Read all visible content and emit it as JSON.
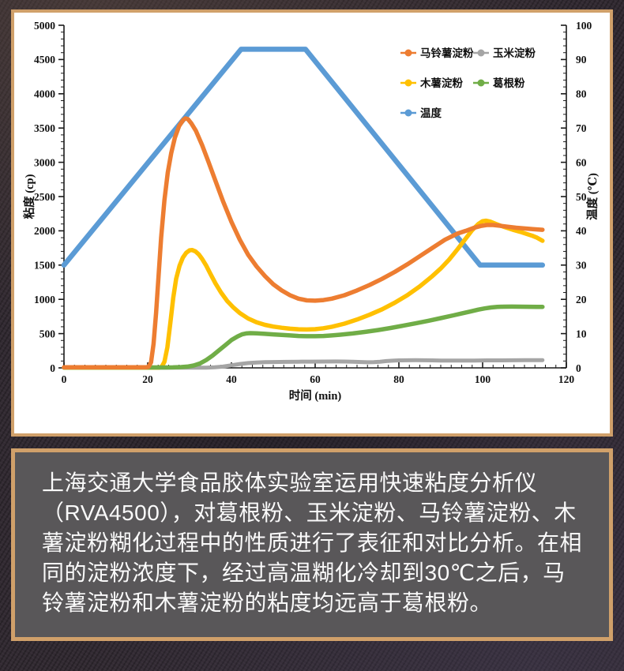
{
  "page": {
    "background_color": "#332b33",
    "frame_color": "#d0a06a",
    "chart_card_color": "#ffffff",
    "caption_panel_color": "#595759",
    "caption_text_color": "#fafafa"
  },
  "caption": {
    "text": "上海交通大学食品胶体实验室运用快速粘度分析仪（RVA4500），对葛根粉、玉米淀粉、马铃薯淀粉、木薯淀粉糊化过程中的性质进行了表征和对比分析。在相同的淀粉浓度下，经过高温糊化冷却到30℃之后，马铃薯淀粉和木薯淀粉的粘度均远高于葛根粉。"
  },
  "chart_data": {
    "type": "line",
    "title": "",
    "xlabel": "时间 (min)",
    "ylabel_left": "粘度 (cp)",
    "ylabel_right": "温度 (℃)",
    "x_range": [
      0,
      120
    ],
    "x_major_tick": 20,
    "x_minor_tick": 2.5,
    "y_left_range": [
      0,
      5000
    ],
    "y_left_major_tick": 500,
    "y_left_minor_tick": 100,
    "y_right_range": [
      0,
      100
    ],
    "y_right_major_tick": 10,
    "y_right_minor_tick": 2,
    "grid": false,
    "legend_position": "inside-top-right",
    "legend_rows": [
      [
        "马铃薯淀粉",
        "玉米淀粉"
      ],
      [
        "木薯淀粉",
        "葛根粉"
      ],
      [
        "温度"
      ]
    ],
    "series": [
      {
        "name": "马铃薯淀粉",
        "axis": "left",
        "color": "#ED7D31",
        "width": 5.5,
        "z": 5,
        "points": [
          [
            0,
            8
          ],
          [
            5,
            8
          ],
          [
            10,
            8
          ],
          [
            15,
            8
          ],
          [
            19.5,
            8
          ],
          [
            20.2,
            15
          ],
          [
            20.8,
            80
          ],
          [
            21.4,
            350
          ],
          [
            22,
            800
          ],
          [
            22.6,
            1350
          ],
          [
            23.2,
            1900
          ],
          [
            24,
            2450
          ],
          [
            24.8,
            2850
          ],
          [
            25.6,
            3130
          ],
          [
            26.5,
            3360
          ],
          [
            27.5,
            3530
          ],
          [
            28.5,
            3620
          ],
          [
            29,
            3640
          ],
          [
            29.6,
            3630
          ],
          [
            30.4,
            3570
          ],
          [
            31.5,
            3460
          ],
          [
            33,
            3250
          ],
          [
            34.5,
            3010
          ],
          [
            36,
            2760
          ],
          [
            38,
            2430
          ],
          [
            40,
            2130
          ],
          [
            42,
            1870
          ],
          [
            44,
            1650
          ],
          [
            46,
            1480
          ],
          [
            48,
            1340
          ],
          [
            50,
            1220
          ],
          [
            52,
            1130
          ],
          [
            54,
            1060
          ],
          [
            56,
            1010
          ],
          [
            58,
            985
          ],
          [
            60,
            980
          ],
          [
            62,
            990
          ],
          [
            64,
            1010
          ],
          [
            67,
            1060
          ],
          [
            70,
            1130
          ],
          [
            73,
            1210
          ],
          [
            76,
            1300
          ],
          [
            79,
            1400
          ],
          [
            82,
            1510
          ],
          [
            85,
            1630
          ],
          [
            88,
            1750
          ],
          [
            91,
            1870
          ],
          [
            94,
            1960
          ],
          [
            96,
            2000
          ],
          [
            98,
            2045
          ],
          [
            99.5,
            2070
          ],
          [
            101,
            2085
          ],
          [
            102.5,
            2085
          ],
          [
            104,
            2075
          ],
          [
            106,
            2060
          ],
          [
            108,
            2045
          ],
          [
            110,
            2035
          ],
          [
            112,
            2025
          ],
          [
            114.3,
            2015
          ]
        ]
      },
      {
        "name": "玉米淀粉",
        "axis": "left",
        "color": "#A5A5A5",
        "width": 5,
        "z": 2,
        "points": [
          [
            0,
            3
          ],
          [
            5,
            3
          ],
          [
            10,
            3
          ],
          [
            15,
            3
          ],
          [
            20,
            3
          ],
          [
            25,
            3
          ],
          [
            30,
            3
          ],
          [
            34,
            4
          ],
          [
            36,
            8
          ],
          [
            38,
            18
          ],
          [
            40,
            38
          ],
          [
            42,
            57
          ],
          [
            44,
            70
          ],
          [
            46,
            78
          ],
          [
            48,
            83
          ],
          [
            50,
            85
          ],
          [
            53,
            88
          ],
          [
            56,
            90
          ],
          [
            59,
            91
          ],
          [
            62,
            92
          ],
          [
            65,
            93
          ],
          [
            67,
            92
          ],
          [
            69,
            89
          ],
          [
            71,
            85
          ],
          [
            72.5,
            82
          ],
          [
            74,
            83
          ],
          [
            75.5,
            90
          ],
          [
            77,
            99
          ],
          [
            78.5,
            105
          ],
          [
            80,
            109
          ],
          [
            82,
            111
          ],
          [
            84,
            112
          ],
          [
            86,
            111
          ],
          [
            88,
            109
          ],
          [
            90,
            107
          ],
          [
            92,
            106
          ],
          [
            95,
            106
          ],
          [
            98,
            107
          ],
          [
            101,
            109
          ],
          [
            104,
            110
          ],
          [
            107,
            111
          ],
          [
            110,
            112
          ],
          [
            112,
            112
          ],
          [
            114.3,
            113
          ]
        ]
      },
      {
        "name": "木薯淀粉",
        "axis": "left",
        "color": "#FFC000",
        "width": 5.5,
        "z": 3,
        "points": [
          [
            0,
            5
          ],
          [
            5,
            5
          ],
          [
            10,
            5
          ],
          [
            15,
            5
          ],
          [
            20,
            5
          ],
          [
            22.8,
            5
          ],
          [
            23.4,
            20
          ],
          [
            24,
            90
          ],
          [
            24.7,
            300
          ],
          [
            25.4,
            650
          ],
          [
            26.1,
            1020
          ],
          [
            26.8,
            1300
          ],
          [
            27.6,
            1490
          ],
          [
            28.4,
            1610
          ],
          [
            29.2,
            1680
          ],
          [
            30,
            1715
          ],
          [
            30.6,
            1720
          ],
          [
            31.4,
            1700
          ],
          [
            32.2,
            1655
          ],
          [
            33,
            1590
          ],
          [
            34,
            1490
          ],
          [
            35,
            1370
          ],
          [
            36.2,
            1230
          ],
          [
            37.5,
            1100
          ],
          [
            39,
            975
          ],
          [
            40.5,
            880
          ],
          [
            42,
            800
          ],
          [
            44,
            720
          ],
          [
            46,
            665
          ],
          [
            48,
            628
          ],
          [
            50,
            603
          ],
          [
            52,
            585
          ],
          [
            54,
            572
          ],
          [
            56,
            563
          ],
          [
            58,
            560
          ],
          [
            60,
            565
          ],
          [
            62,
            578
          ],
          [
            64,
            600
          ],
          [
            67,
            645
          ],
          [
            70,
            705
          ],
          [
            73,
            775
          ],
          [
            76,
            855
          ],
          [
            79,
            950
          ],
          [
            82,
            1060
          ],
          [
            85,
            1190
          ],
          [
            88,
            1340
          ],
          [
            90,
            1450
          ],
          [
            92,
            1580
          ],
          [
            94,
            1730
          ],
          [
            96,
            1890
          ],
          [
            97.5,
            2010
          ],
          [
            99,
            2100
          ],
          [
            100,
            2140
          ],
          [
            100.8,
            2148
          ],
          [
            101.8,
            2135
          ],
          [
            103,
            2105
          ],
          [
            104.5,
            2070
          ],
          [
            106,
            2040
          ],
          [
            107.5,
            2010
          ],
          [
            109,
            1985
          ],
          [
            110.5,
            1955
          ],
          [
            112,
            1925
          ],
          [
            113,
            1900
          ],
          [
            114.3,
            1855
          ]
        ]
      },
      {
        "name": "葛根粉",
        "axis": "left",
        "color": "#70AD47",
        "width": 5.5,
        "z": 4,
        "points": [
          [
            0,
            6
          ],
          [
            5,
            6
          ],
          [
            10,
            6
          ],
          [
            15,
            6
          ],
          [
            20,
            6
          ],
          [
            24,
            6
          ],
          [
            26,
            7
          ],
          [
            28,
            11
          ],
          [
            29.5,
            18
          ],
          [
            31,
            35
          ],
          [
            32.5,
            65
          ],
          [
            34,
            115
          ],
          [
            35.5,
            180
          ],
          [
            37,
            255
          ],
          [
            38.5,
            330
          ],
          [
            40,
            405
          ],
          [
            41.5,
            460
          ],
          [
            42.5,
            488
          ],
          [
            43.5,
            502
          ],
          [
            44.5,
            507
          ],
          [
            46,
            504
          ],
          [
            48,
            497
          ],
          [
            50,
            489
          ],
          [
            52,
            481
          ],
          [
            54,
            473
          ],
          [
            56,
            466
          ],
          [
            58,
            462
          ],
          [
            60,
            462
          ],
          [
            62,
            466
          ],
          [
            64,
            474
          ],
          [
            66,
            484
          ],
          [
            69,
            502
          ],
          [
            72,
            525
          ],
          [
            75,
            552
          ],
          [
            78,
            582
          ],
          [
            81,
            615
          ],
          [
            84,
            650
          ],
          [
            87,
            687
          ],
          [
            90,
            726
          ],
          [
            93,
            766
          ],
          [
            95,
            794
          ],
          [
            97,
            822
          ],
          [
            99,
            850
          ],
          [
            100.5,
            868
          ],
          [
            102,
            881
          ],
          [
            103.5,
            889
          ],
          [
            105,
            893
          ],
          [
            107,
            894
          ],
          [
            109,
            893
          ],
          [
            111,
            892
          ],
          [
            113,
            891
          ],
          [
            114.3,
            890
          ]
        ]
      },
      {
        "name": "温度",
        "axis": "right",
        "color": "#5B9BD5",
        "width": 6.5,
        "z": 1,
        "points": [
          [
            0,
            30
          ],
          [
            42.3,
            93
          ],
          [
            57.7,
            93
          ],
          [
            99.4,
            30
          ],
          [
            114.3,
            30
          ]
        ]
      }
    ]
  }
}
